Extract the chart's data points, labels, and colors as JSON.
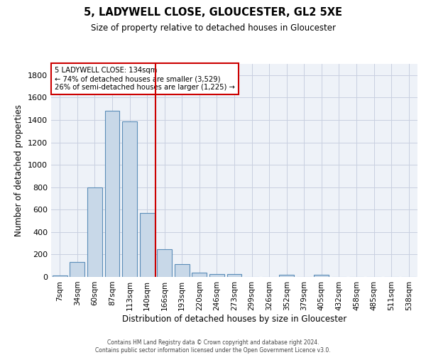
{
  "title": "5, LADYWELL CLOSE, GLOUCESTER, GL2 5XE",
  "subtitle": "Size of property relative to detached houses in Gloucester",
  "xlabel": "Distribution of detached houses by size in Gloucester",
  "ylabel": "Number of detached properties",
  "bar_color": "#c8d8e8",
  "bar_edge_color": "#5b8db8",
  "categories": [
    "7sqm",
    "34sqm",
    "60sqm",
    "87sqm",
    "113sqm",
    "140sqm",
    "166sqm",
    "193sqm",
    "220sqm",
    "246sqm",
    "273sqm",
    "299sqm",
    "326sqm",
    "352sqm",
    "379sqm",
    "405sqm",
    "432sqm",
    "458sqm",
    "485sqm",
    "511sqm",
    "538sqm"
  ],
  "values": [
    10,
    130,
    800,
    1480,
    1390,
    570,
    250,
    115,
    35,
    28,
    28,
    0,
    0,
    18,
    0,
    18,
    0,
    0,
    0,
    0,
    0
  ],
  "ylim": [
    0,
    1900
  ],
  "yticks": [
    0,
    200,
    400,
    600,
    800,
    1000,
    1200,
    1400,
    1600,
    1800
  ],
  "property_line_x": 5.5,
  "annotation_title": "5 LADYWELL CLOSE: 134sqm",
  "annotation_line1": "← 74% of detached houses are smaller (3,529)",
  "annotation_line2": "26% of semi-detached houses are larger (1,225) →",
  "annotation_box_color": "#cc0000",
  "vline_color": "#cc0000",
  "bg_color": "#eef2f8",
  "grid_color": "#c8cfe0",
  "footer_line1": "Contains HM Land Registry data © Crown copyright and database right 2024.",
  "footer_line2": "Contains public sector information licensed under the Open Government Licence v3.0."
}
